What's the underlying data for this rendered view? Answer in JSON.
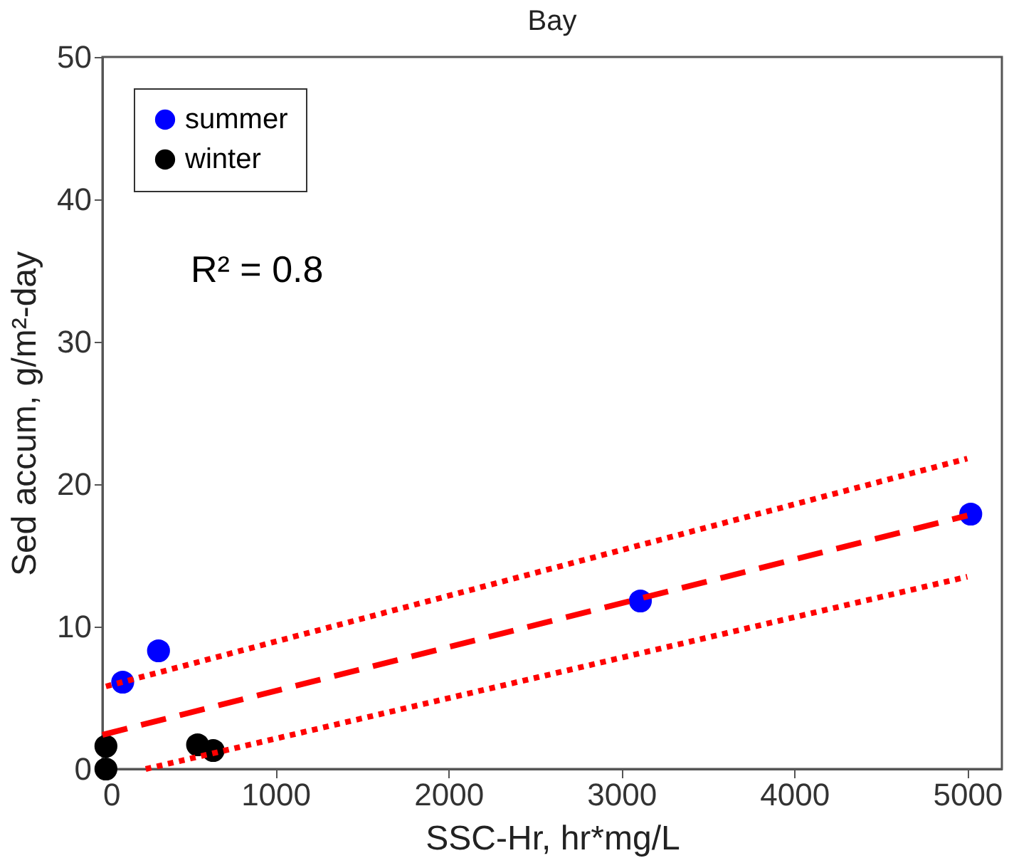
{
  "chart_data": {
    "type": "scatter",
    "title": "Bay",
    "xlabel": "SSC-Hr, hr*mg/L",
    "ylabel": "Sed accum, g/m²-day",
    "xlim": [
      0,
      5200
    ],
    "ylim": [
      0,
      50
    ],
    "xticks": [
      0,
      1000,
      2000,
      3000,
      4000,
      5000
    ],
    "yticks": [
      0,
      10,
      20,
      30,
      40,
      50
    ],
    "grid": false,
    "legend": "top left",
    "annotations": [
      "R² = 0.8"
    ],
    "series": [
      {
        "name": "summer",
        "color": "#0000ff",
        "marker": "circle",
        "x": [
          117,
          324,
          3110,
          5020
        ],
        "values": [
          6.1,
          8.3,
          11.8,
          17.9
        ]
      },
      {
        "name": "winter",
        "color": "#000000",
        "marker": "circle",
        "x": [
          20,
          20,
          550,
          640
        ],
        "values": [
          1.6,
          0,
          1.7,
          1.3
        ]
      },
      {
        "type": "line",
        "line_style": "dashed",
        "color": "#ff0000",
        "x": [
          0,
          5000
        ],
        "values": [
          2.4,
          17.8
        ]
      },
      {
        "type": "line",
        "line_style": "dotted",
        "color": "#ff0000",
        "x": [
          20,
          5000
        ],
        "values": [
          5.8,
          21.8
        ]
      },
      {
        "type": "line",
        "line_style": "dotted",
        "color": "#ff0000",
        "x": [
          250,
          5000
        ],
        "values": [
          0,
          13.5
        ]
      }
    ]
  }
}
